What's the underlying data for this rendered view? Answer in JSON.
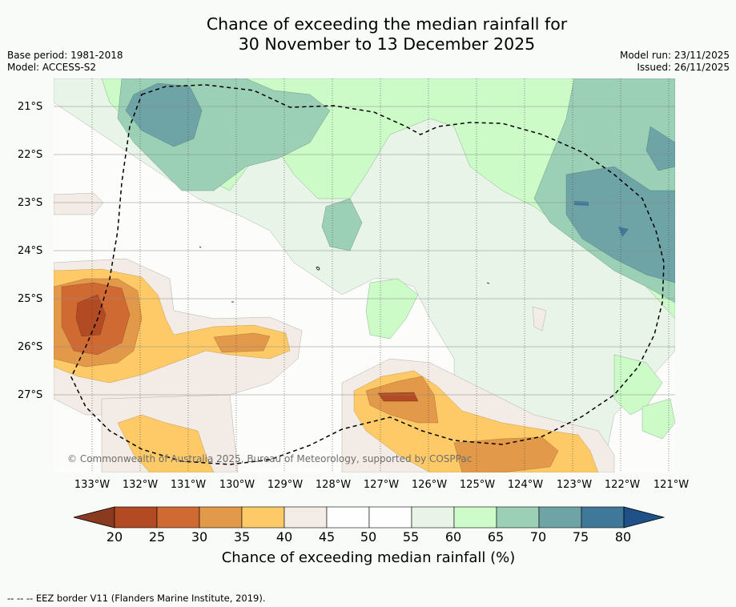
{
  "title": {
    "line1": "Chance of exceeding the median rainfall for",
    "line2": "30 November to 13 December 2025"
  },
  "meta_left": {
    "base_period": "Base period: 1981-2018",
    "model": "Model: ACCESS-S2"
  },
  "meta_right": {
    "model_run": "Model run: 23/11/2025",
    "issued": "Issued: 26/11/2025"
  },
  "map": {
    "lat_ticks": [
      "21°S",
      "22°S",
      "23°S",
      "24°S",
      "25°S",
      "26°S",
      "27°S"
    ],
    "lon_ticks": [
      "133°W",
      "132°W",
      "131°W",
      "130°W",
      "129°W",
      "128°W",
      "127°W",
      "126°W",
      "125°W",
      "124°W",
      "123°W",
      "122°W",
      "121°W"
    ],
    "copyright": "© Commonwealth of Australia 2025, Bureau of Meteorology, supported by COSPPac"
  },
  "colorbar": {
    "labels": [
      "20",
      "25",
      "30",
      "35",
      "40",
      "45",
      "50",
      "55",
      "60",
      "65",
      "70",
      "75",
      "80"
    ],
    "colors": [
      "#8a3a1e",
      "#b24a23",
      "#cf6a33",
      "#e2994a",
      "#fdca67",
      "#f2ebe6",
      "#fdfefd",
      "#fdfefd",
      "#e9f4e8",
      "#cdfbc9",
      "#9bd0b7",
      "#6fa4a6",
      "#40789a",
      "#1f5088"
    ],
    "title": "Chance of exceeding median rainfall (%)"
  },
  "footer": "--  --  -- EEZ border V11 (Flanders Marine Institute, 2019)."
}
